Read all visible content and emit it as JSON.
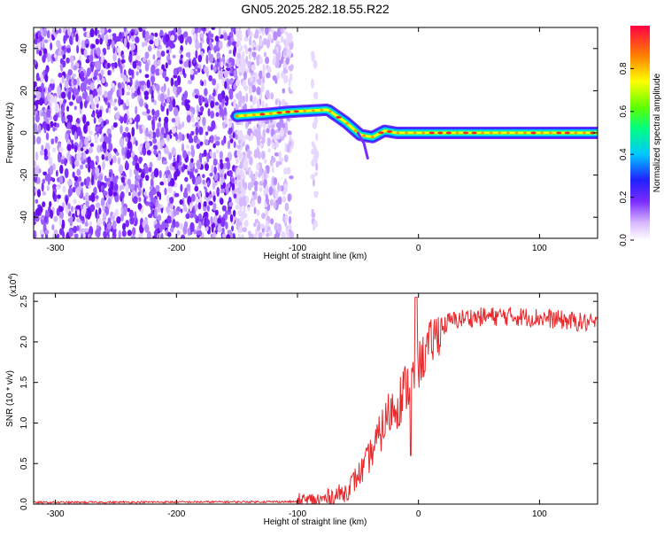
{
  "title": "GN05.2025.282.18.55.R22",
  "chart_data": [
    {
      "type": "heatmap",
      "xlabel": "Height of straight line (km)",
      "ylabel": "Frequency (Hz)",
      "xlim": [
        -318,
        148
      ],
      "ylim": [
        -50,
        50
      ],
      "x_ticks": [
        -300,
        -200,
        -100,
        0,
        100
      ],
      "y_ticks": [
        40,
        20,
        0,
        -20,
        -40
      ],
      "colorbar": {
        "label": "Normalized spectral amplitude",
        "range": [
          0.0,
          1.0
        ],
        "ticks": [
          "0.0",
          "0.2",
          "0.4",
          "0.6",
          "0.8"
        ]
      },
      "ridge": [
        {
          "x": -150,
          "y": 8
        },
        {
          "x": -125,
          "y": 9
        },
        {
          "x": -107,
          "y": 10
        },
        {
          "x": -75,
          "y": 11
        },
        {
          "x": -60,
          "y": 5
        },
        {
          "x": -48,
          "y": -1
        },
        {
          "x": -38,
          "y": -2
        },
        {
          "x": -28,
          "y": 1
        },
        {
          "x": -18,
          "y": 0
        },
        {
          "x": 148,
          "y": 0
        }
      ]
    },
    {
      "type": "line",
      "xlabel": "Height of straight line (km)",
      "ylabel": "SNR (10 * v/v)",
      "y_multiplier": "(x10",
      "y_multiplier_exp": "4",
      "xlim": [
        -318,
        148
      ],
      "ylim": [
        0,
        2.6
      ],
      "x_ticks": [
        -300,
        -200,
        -100,
        0,
        100
      ],
      "y_ticks": [
        "0.0",
        "0.5",
        "1.0",
        "1.5",
        "2.0",
        "2.5"
      ],
      "series_color": "#e8282b",
      "trend": [
        {
          "x": -318,
          "y": 0.02
        },
        {
          "x": -100,
          "y": 0.03
        },
        {
          "x": -80,
          "y": 0.05
        },
        {
          "x": -60,
          "y": 0.15
        },
        {
          "x": -45,
          "y": 0.45
        },
        {
          "x": -35,
          "y": 0.75
        },
        {
          "x": -25,
          "y": 1.1
        },
        {
          "x": -15,
          "y": 1.3
        },
        {
          "x": -5,
          "y": 1.55
        },
        {
          "x": 5,
          "y": 1.85
        },
        {
          "x": 15,
          "y": 2.1
        },
        {
          "x": 25,
          "y": 2.25
        },
        {
          "x": 40,
          "y": 2.3
        },
        {
          "x": 70,
          "y": 2.32
        },
        {
          "x": 100,
          "y": 2.3
        },
        {
          "x": 148,
          "y": 2.22
        }
      ]
    }
  ]
}
